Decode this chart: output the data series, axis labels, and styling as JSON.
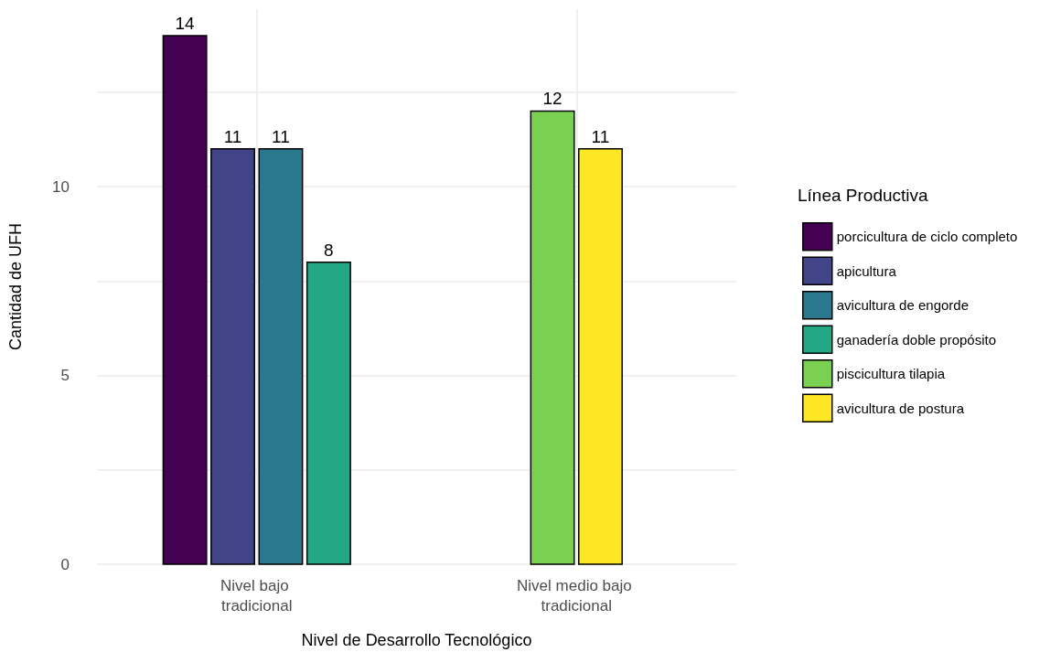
{
  "chart_data": {
    "type": "bar",
    "xlabel": "Nivel de Desarrollo Tecnológico",
    "ylabel": "Cantidad de UFH",
    "legend_title": "Línea Productiva",
    "categories": [
      "Nivel bajo tradicional",
      "Nivel medio bajo tradicional"
    ],
    "series": [
      {
        "name": "porcicultura de ciclo completo",
        "color": "#440154",
        "values": [
          14,
          null
        ]
      },
      {
        "name": "apicultura",
        "color": "#414487",
        "values": [
          11,
          null
        ]
      },
      {
        "name": "avicultura de engorde",
        "color": "#2a788e",
        "values": [
          11,
          null
        ]
      },
      {
        "name": "ganadería doble propósito",
        "color": "#22a884",
        "values": [
          8,
          null
        ]
      },
      {
        "name": "piscicultura tilapia",
        "color": "#7ad151",
        "values": [
          null,
          12
        ]
      },
      {
        "name": "avicultura de postura",
        "color": "#fde725",
        "values": [
          null,
          11
        ]
      }
    ],
    "ylim": [
      0,
      14.7
    ],
    "yticks": [
      0,
      {
        "value": 2.5,
        "label": null
      },
      5,
      {
        "value": 7.5,
        "label": null
      },
      10,
      {
        "value": 12.5,
        "label": null
      }
    ],
    "grid": true,
    "legend": "right",
    "data_labels": true
  }
}
